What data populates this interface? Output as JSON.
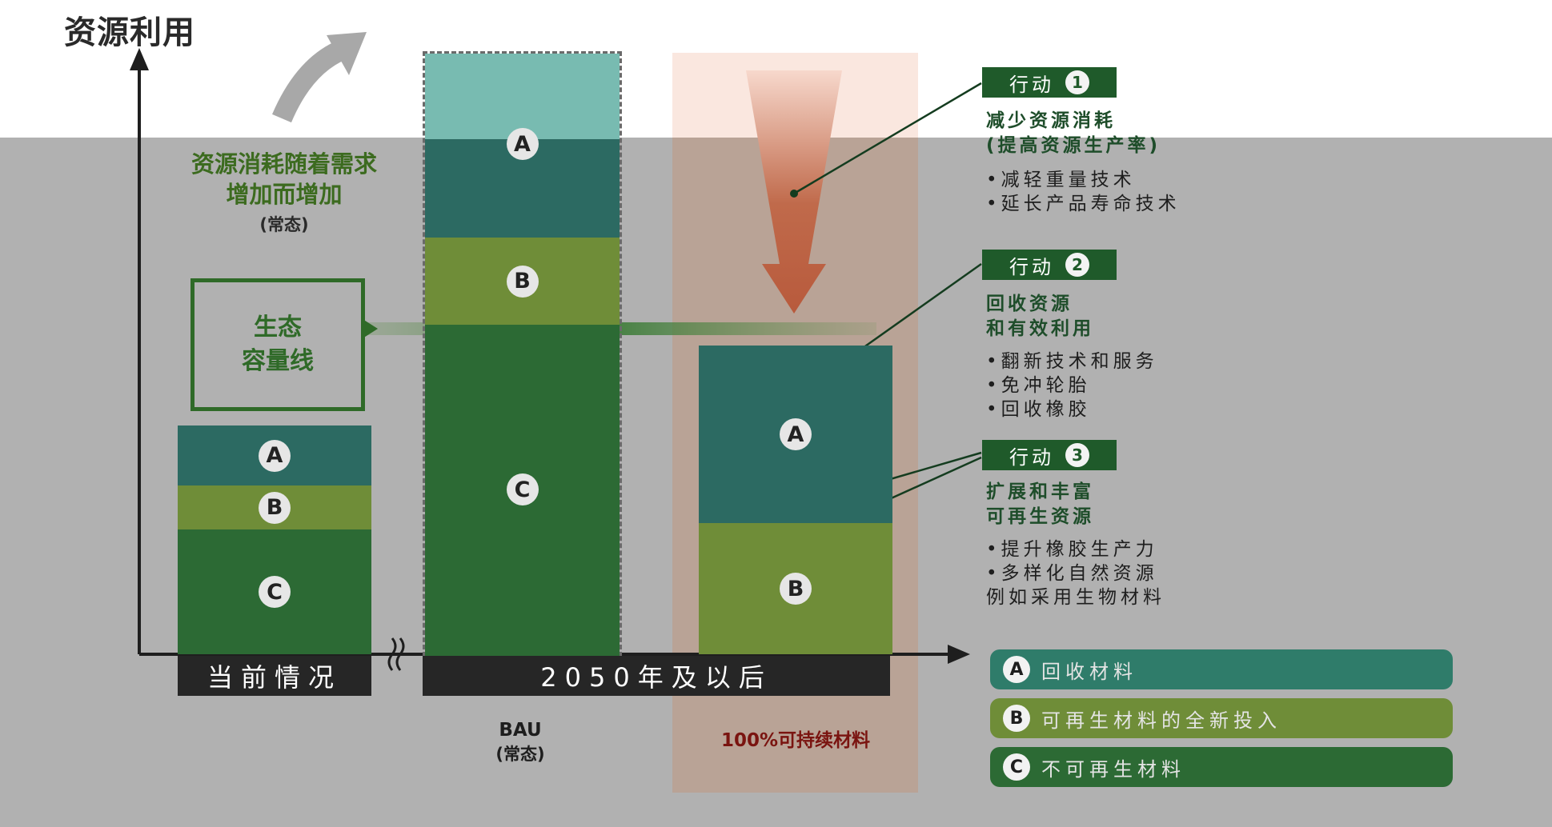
{
  "y_axis_title": "资源利用",
  "consumption_caption": {
    "line1": "资源消耗随着需求",
    "line2": "增加而增加",
    "line3": "(常态)"
  },
  "eco_line": {
    "line1": "生态",
    "line2": "容量线"
  },
  "bar_labels": {
    "a": "A",
    "b": "B",
    "c": "C"
  },
  "x_axis": {
    "current": "当前情况",
    "future": "2050年及以后"
  },
  "bau": {
    "line1": "BAU",
    "line2": "(常态)"
  },
  "sustainable_label": "100%可持续材料",
  "actions": [
    {
      "label": "行动",
      "number": "1",
      "title1": "减少资源消耗",
      "title2": "(提高资源生产率)",
      "bullets": [
        "•减轻重量技术",
        "•延长产品寿命技术"
      ]
    },
    {
      "label": "行动",
      "number": "2",
      "title1": "回收资源",
      "title2": "和有效利用",
      "bullets": [
        "•翻新技术和服务",
        "•免冲轮胎",
        "•回收橡胶"
      ]
    },
    {
      "label": "行动",
      "number": "3",
      "title1": "扩展和丰富",
      "title2": "可再生资源",
      "bullets": [
        "•提升橡胶生产力",
        "•多样化自然资源",
        "例如采用生物材料"
      ]
    }
  ],
  "legend": [
    {
      "key": "A",
      "text": "回收材料",
      "color": "#2f7c6a"
    },
    {
      "key": "B",
      "text": "可再生材料的全新投入",
      "color": "#6f8d38"
    },
    {
      "key": "C",
      "text": "不可再生材料",
      "color": "#2c6a34"
    }
  ],
  "colors": {
    "a": "#2c6a62",
    "a_light": "#78bbb1",
    "b": "#6f8d38",
    "c": "#2c6a34",
    "arrow": "#b85a3c"
  }
}
